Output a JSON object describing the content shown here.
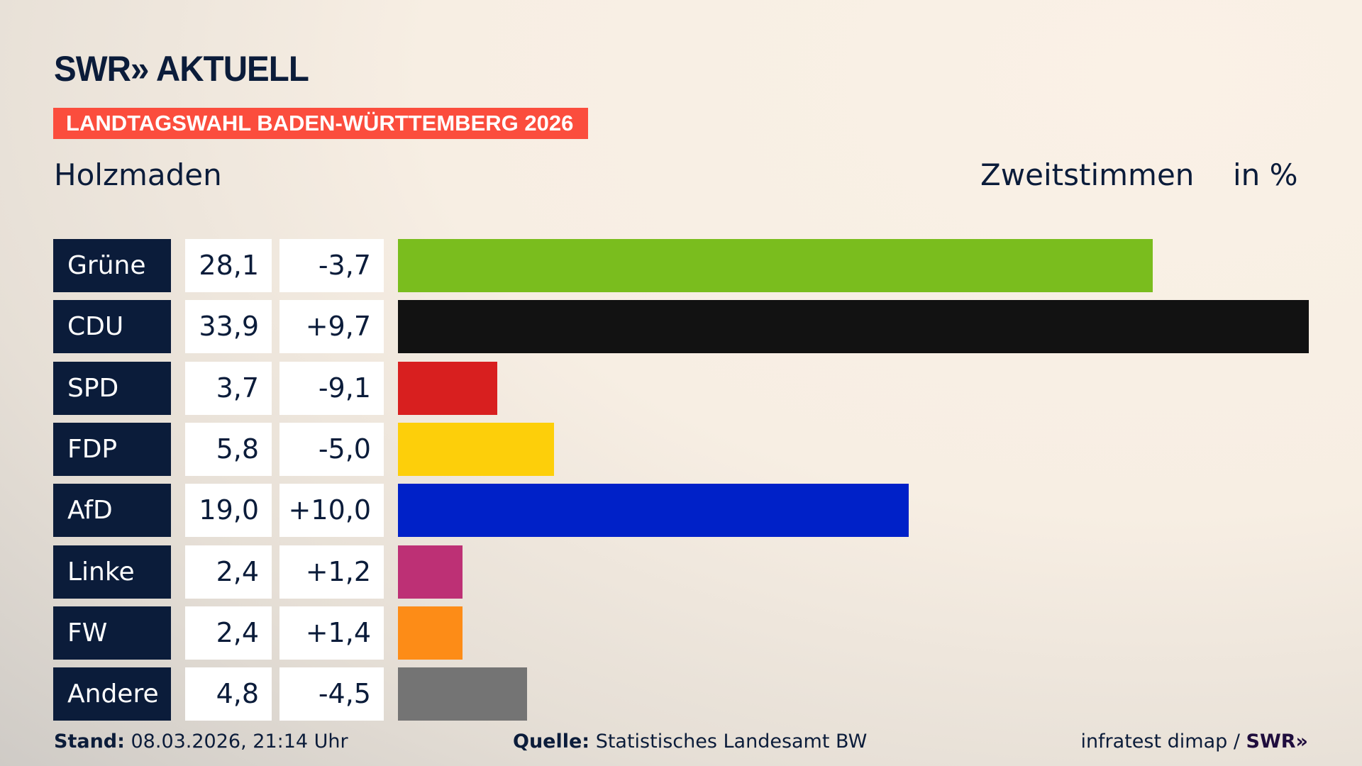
{
  "header": {
    "logo": "SWR» AKTUELL",
    "banner": "LANDTAGSWAHL BADEN-WÜRTTEMBERG 2026",
    "region": "Holzmaden",
    "vote_type": "Zweitstimmen",
    "unit": "in %"
  },
  "chart_data": {
    "type": "bar",
    "orientation": "horizontal",
    "categories": [
      "Grüne",
      "CDU",
      "SPD",
      "FDP",
      "AfD",
      "Linke",
      "FW",
      "Andere"
    ],
    "values": [
      28.1,
      33.9,
      3.7,
      5.8,
      19.0,
      2.4,
      2.4,
      4.8
    ],
    "value_labels": [
      "28,1",
      "33,9",
      "3,7",
      "5,8",
      "19,0",
      "2,4",
      "2,4",
      "4,8"
    ],
    "changes": [
      "-3,7",
      "+9,7",
      "-9,1",
      "-5,0",
      "+10,0",
      "+1,2",
      "+1,4",
      "-4,5"
    ],
    "colors": [
      "#7abd1e",
      "#121212",
      "#d81f1f",
      "#fdcf0a",
      "#0021c8",
      "#bd3075",
      "#fd8c17",
      "#747474"
    ],
    "grid": false
  },
  "footer": {
    "stand_label": "Stand:",
    "stand_value": " 08.03.2026, 21:14 Uhr",
    "source_label": "Quelle:",
    "source_value": " Statistisches Landesamt BW",
    "credit": "infratest dimap / ",
    "credit_logo": "SWR»"
  }
}
